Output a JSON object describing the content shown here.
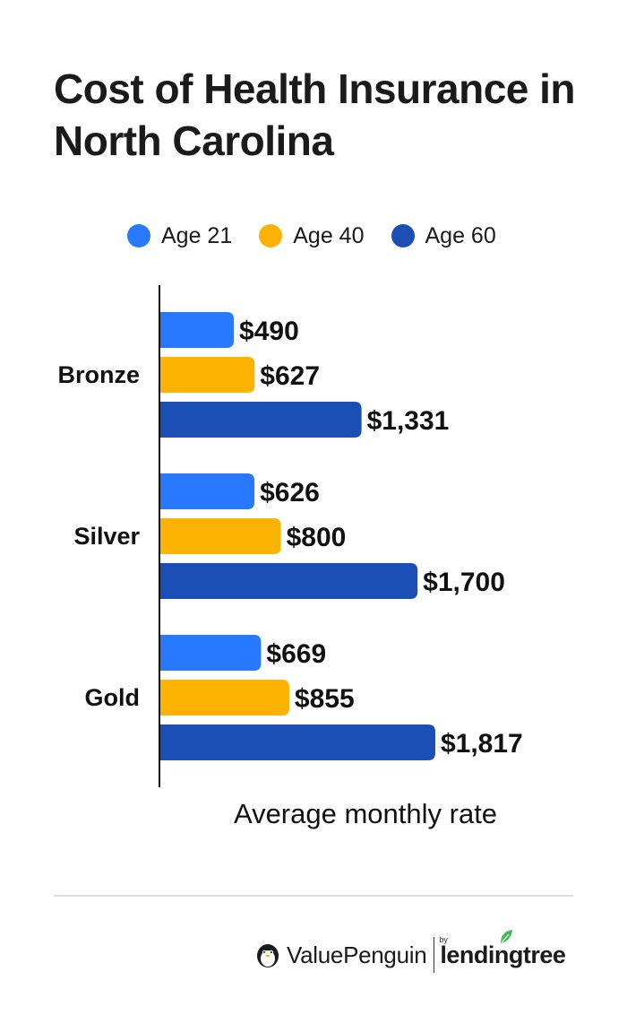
{
  "title": "Cost of Health Insurance in North Carolina",
  "legend": [
    {
      "label": "Age 21",
      "color": "#2979FF"
    },
    {
      "label": "Age 40",
      "color": "#FBB200"
    },
    {
      "label": "Age 60",
      "color": "#1B4FB5"
    }
  ],
  "chart_data": {
    "type": "bar",
    "orientation": "horizontal",
    "categories": [
      "Bronze",
      "Silver",
      "Gold"
    ],
    "series": [
      {
        "name": "Age 21",
        "values": [
          490,
          626,
          669
        ],
        "labels": [
          "$490",
          "$626",
          "$669"
        ],
        "color": "#2979FF"
      },
      {
        "name": "Age 40",
        "values": [
          627,
          800,
          855
        ],
        "labels": [
          "$627",
          "$800",
          "$855"
        ],
        "color": "#FBB200"
      },
      {
        "name": "Age 60",
        "values": [
          1331,
          1700,
          1817
        ],
        "labels": [
          "$1,331",
          "$1,700",
          "$1,817"
        ],
        "color": "#1B4FB5"
      }
    ],
    "xlabel": "Average monthly rate",
    "xlim": [
      0,
      2000
    ],
    "grid": false,
    "legend_position": "top"
  },
  "footer": {
    "brand_left": "ValuePenguin",
    "brand_by": "by",
    "brand_right": "lendingtree"
  }
}
